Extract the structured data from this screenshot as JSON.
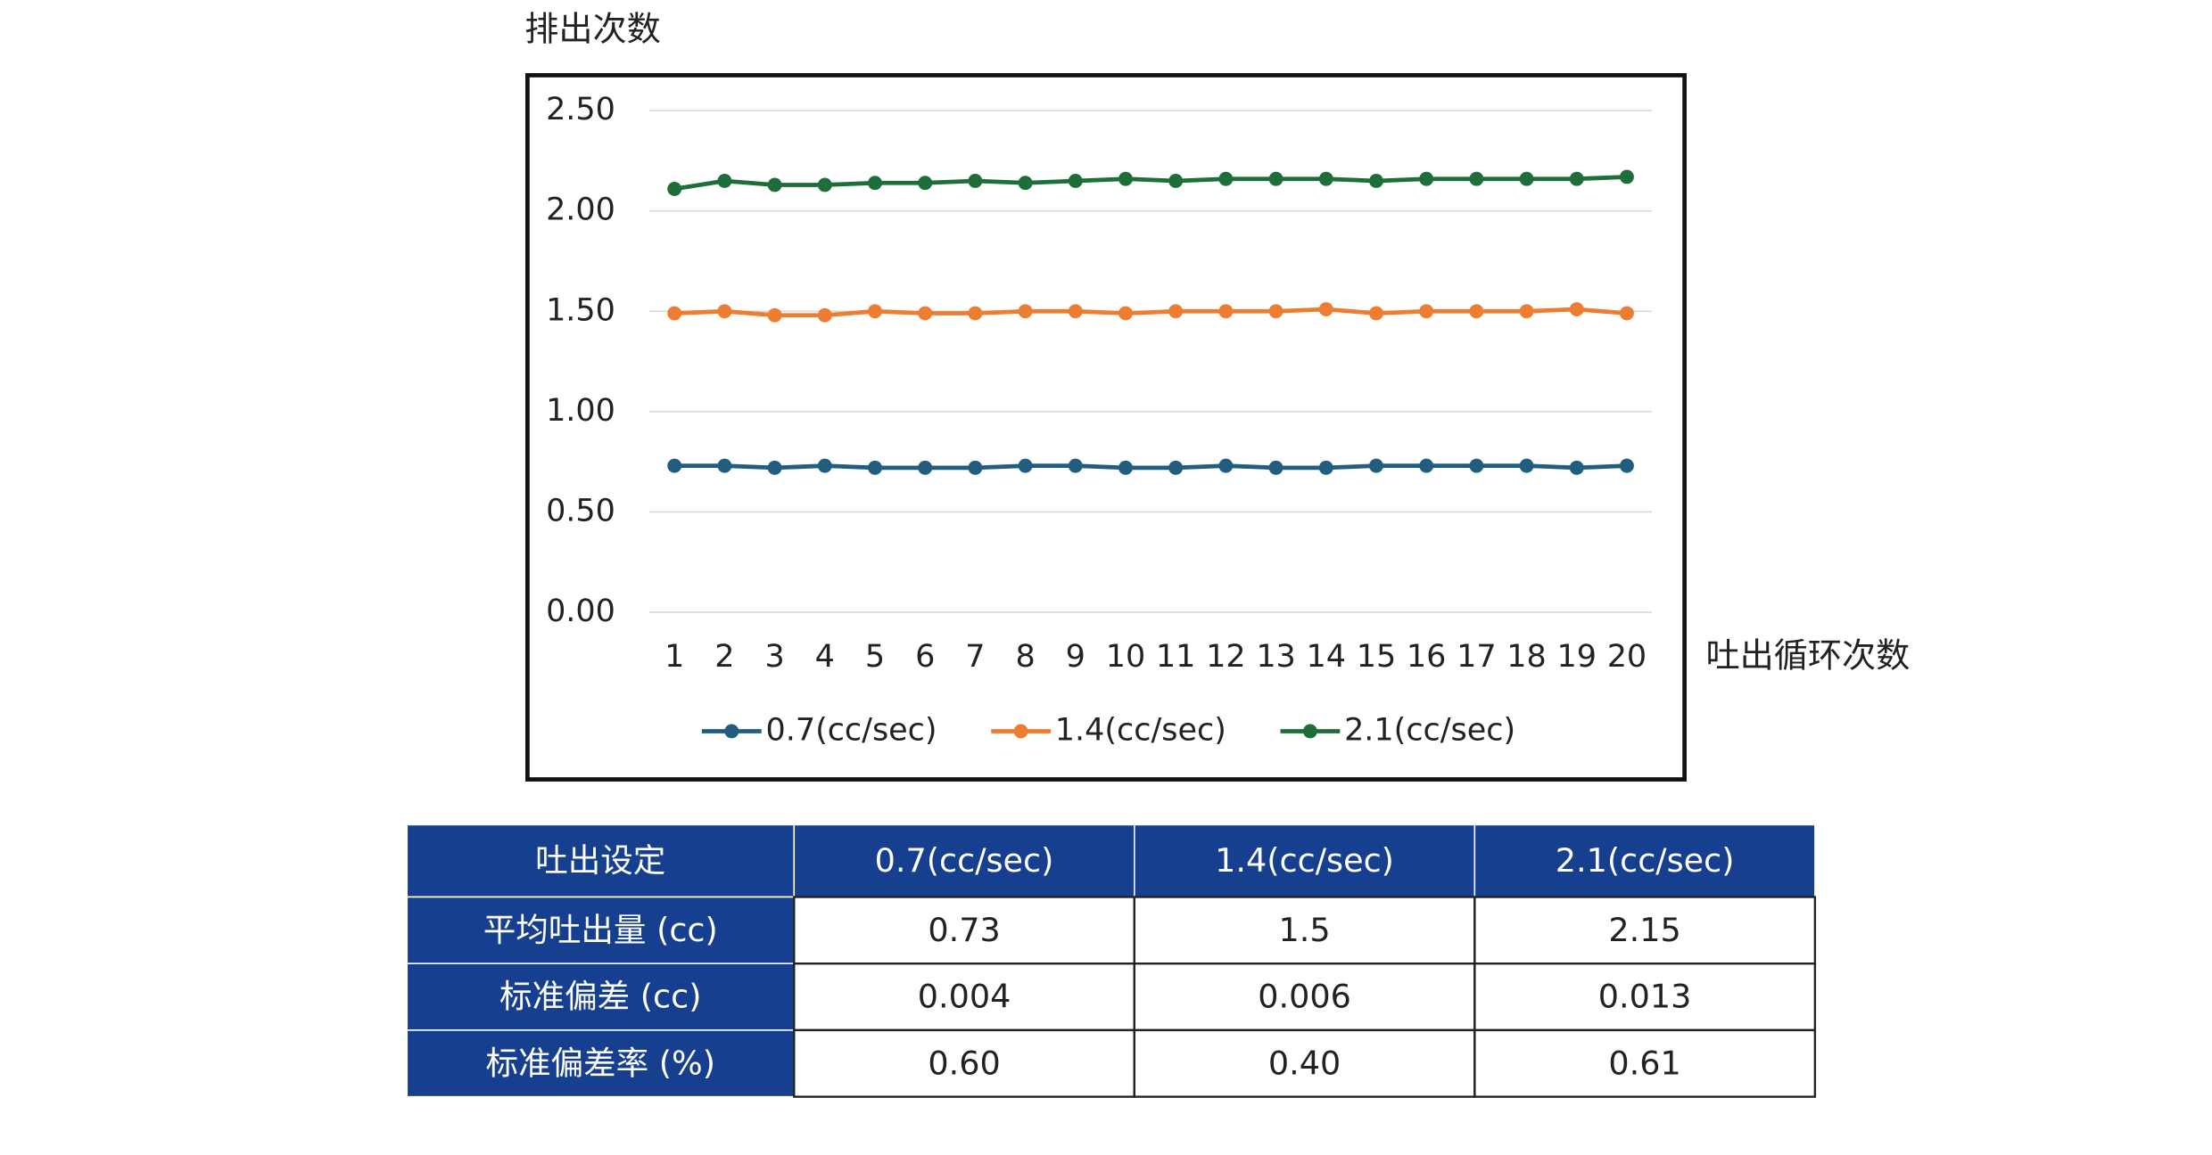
{
  "chart_data": {
    "type": "line",
    "y_label": "排出次数",
    "x_label": "吐出循环次数",
    "categories": [
      1,
      2,
      3,
      4,
      5,
      6,
      7,
      8,
      9,
      10,
      11,
      12,
      13,
      14,
      15,
      16,
      17,
      18,
      19,
      20
    ],
    "series": [
      {
        "name": "0.7(cc/sec)",
        "color": "#215d7e",
        "values": [
          0.73,
          0.73,
          0.72,
          0.73,
          0.72,
          0.72,
          0.72,
          0.73,
          0.73,
          0.72,
          0.72,
          0.73,
          0.72,
          0.72,
          0.73,
          0.73,
          0.73,
          0.73,
          0.72,
          0.73
        ]
      },
      {
        "name": "1.4(cc/sec)",
        "color": "#ed7d31",
        "values": [
          1.49,
          1.5,
          1.48,
          1.48,
          1.5,
          1.49,
          1.49,
          1.5,
          1.5,
          1.49,
          1.5,
          1.5,
          1.5,
          1.51,
          1.49,
          1.5,
          1.5,
          1.5,
          1.51,
          1.49
        ]
      },
      {
        "name": "2.1(cc/sec)",
        "color": "#1e6e3a",
        "values": [
          2.11,
          2.15,
          2.13,
          2.13,
          2.14,
          2.14,
          2.15,
          2.14,
          2.15,
          2.16,
          2.15,
          2.16,
          2.16,
          2.16,
          2.15,
          2.16,
          2.16,
          2.16,
          2.16,
          2.17
        ]
      }
    ],
    "ylim": [
      0,
      2.5
    ],
    "yticks": [
      {
        "value": 0,
        "label": "0.00"
      },
      {
        "value": 0.5,
        "label": "0.50"
      },
      {
        "value": 1,
        "label": "1.00"
      },
      {
        "value": 1.5,
        "label": "1.50"
      },
      {
        "value": 2,
        "label": "2.00"
      },
      {
        "value": 2.5,
        "label": "2.50"
      }
    ],
    "grid": true,
    "legend": "bottom"
  },
  "table": {
    "header": [
      "吐出设定",
      "0.7(cc/sec)",
      "1.4(cc/sec)",
      "2.1(cc/sec)"
    ],
    "rows": [
      [
        "平均吐出量 (cc)",
        "0.73",
        "1.5",
        "2.15"
      ],
      [
        "标准偏差 (cc)",
        "0.004",
        "0.006",
        "0.013"
      ],
      [
        "标准偏差率 (%)",
        "0.60",
        "0.40",
        "0.61"
      ]
    ]
  }
}
